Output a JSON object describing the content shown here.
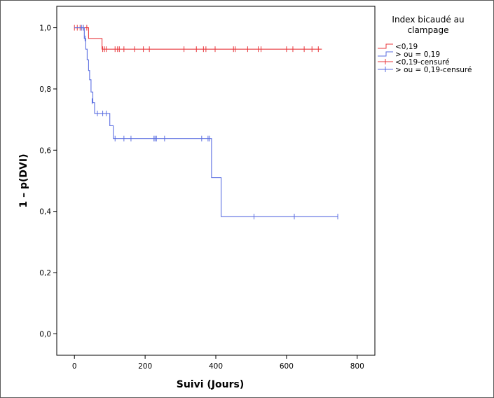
{
  "chart_data": {
    "type": "line",
    "xlabel": "Suivi (Jours)",
    "ylabel": "1 – p(DVI)",
    "xlim": [
      -50,
      850
    ],
    "ylim": [
      -0.07,
      1.07
    ],
    "xticks": [
      0,
      200,
      400,
      600,
      800
    ],
    "xtick_labels": [
      "0",
      "200",
      "400",
      "600",
      "800"
    ],
    "yticks": [
      0.0,
      0.2,
      0.4,
      0.6,
      0.8,
      1.0
    ],
    "ytick_labels": [
      "0,0",
      "0,2",
      "0,4",
      "0,6",
      "0,8",
      "1,0"
    ],
    "grid": false,
    "legend": {
      "title_lines": [
        "Index bicaudé au",
        "clampage"
      ],
      "position": "right",
      "entries": [
        {
          "label": "<0,19",
          "kind": "step",
          "color": "#e8383d"
        },
        {
          "label": "> ou = 0,19",
          "kind": "step",
          "color": "#5b6ee1"
        },
        {
          "label": "<0,19-censuré",
          "kind": "censor",
          "color": "#e8383d"
        },
        {
          "label": "> ou = 0,19-censuré",
          "kind": "censor",
          "color": "#5b6ee1"
        }
      ]
    },
    "series": [
      {
        "name": "<0,19",
        "color": "#e8383d",
        "steps": [
          [
            0,
            1.0
          ],
          [
            40,
            0.965
          ],
          [
            78,
            0.93
          ],
          [
            700,
            0.93
          ]
        ],
        "censored": [
          [
            0,
            1.0
          ],
          [
            8,
            1.0
          ],
          [
            16,
            1.0
          ],
          [
            25,
            1.0
          ],
          [
            35,
            1.0
          ],
          [
            80,
            0.93
          ],
          [
            85,
            0.93
          ],
          [
            90,
            0.93
          ],
          [
            115,
            0.93
          ],
          [
            122,
            0.93
          ],
          [
            127,
            0.93
          ],
          [
            140,
            0.93
          ],
          [
            170,
            0.93
          ],
          [
            195,
            0.93
          ],
          [
            212,
            0.93
          ],
          [
            310,
            0.93
          ],
          [
            345,
            0.93
          ],
          [
            365,
            0.93
          ],
          [
            372,
            0.93
          ],
          [
            398,
            0.93
          ],
          [
            450,
            0.93
          ],
          [
            455,
            0.93
          ],
          [
            490,
            0.93
          ],
          [
            520,
            0.93
          ],
          [
            528,
            0.93
          ],
          [
            600,
            0.93
          ],
          [
            618,
            0.93
          ],
          [
            650,
            0.93
          ],
          [
            672,
            0.93
          ],
          [
            690,
            0.93
          ]
        ]
      },
      {
        "name": "> ou = 0,19",
        "color": "#5b6ee1",
        "steps": [
          [
            0,
            1.0
          ],
          [
            28,
            0.965
          ],
          [
            32,
            0.93
          ],
          [
            36,
            0.895
          ],
          [
            40,
            0.86
          ],
          [
            43,
            0.83
          ],
          [
            47,
            0.79
          ],
          [
            52,
            0.755
          ],
          [
            57,
            0.72
          ],
          [
            100,
            0.68
          ],
          [
            110,
            0.638
          ],
          [
            388,
            0.51
          ],
          [
            415,
            0.383
          ],
          [
            745,
            0.383
          ]
        ],
        "censored": [
          [
            20,
            1.0
          ],
          [
            25,
            1.0
          ],
          [
            30,
            0.965
          ],
          [
            50,
            0.76
          ],
          [
            65,
            0.72
          ],
          [
            80,
            0.72
          ],
          [
            90,
            0.72
          ],
          [
            115,
            0.638
          ],
          [
            140,
            0.638
          ],
          [
            160,
            0.638
          ],
          [
            225,
            0.638
          ],
          [
            228,
            0.638
          ],
          [
            232,
            0.638
          ],
          [
            255,
            0.638
          ],
          [
            360,
            0.638
          ],
          [
            378,
            0.638
          ],
          [
            382,
            0.638
          ],
          [
            508,
            0.383
          ],
          [
            622,
            0.383
          ],
          [
            745,
            0.383
          ]
        ]
      }
    ]
  }
}
